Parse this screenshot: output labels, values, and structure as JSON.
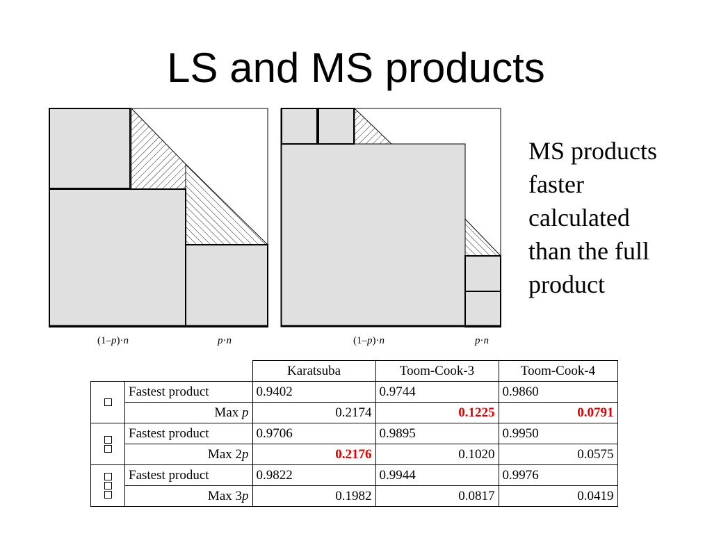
{
  "title": "LS and MS products",
  "side_text": [
    "MS products",
    "faster",
    "calculated",
    "than the full",
    "product"
  ],
  "diagram_labels": {
    "left_low_pre": "(1–",
    "left_low_var": "p",
    "left_low_post": ")·",
    "left_low_n": "n",
    "left_high_p": "p",
    "left_high_dot": "·",
    "left_high_n": "n",
    "right_low_pre": "(1–",
    "right_low_var": "p",
    "right_low_post": ")·",
    "right_low_n": "n",
    "right_high_p": "p",
    "right_high_dot": "·",
    "right_high_n": "n"
  },
  "table": {
    "headers": [
      "Karatsuba",
      "Toom-Cook-3",
      "Toom-Cook-4"
    ],
    "groups": [
      {
        "fastest_label": "Fastest product",
        "max_label_prefix": "Max ",
        "max_label_var": "p",
        "fastest": [
          "0.9402",
          "0.9744",
          "0.9860"
        ],
        "max": [
          "0.2174",
          "0.1225",
          "0.0791"
        ],
        "highlight": [
          false,
          true,
          true
        ]
      },
      {
        "fastest_label": "Fastest product",
        "max_label_prefix": "Max 2",
        "max_label_var": "p",
        "fastest": [
          "0.9706",
          "0.9895",
          "0.9950"
        ],
        "max": [
          "0.2176",
          "0.1020",
          "0.0575"
        ],
        "highlight": [
          true,
          false,
          false
        ]
      },
      {
        "fastest_label": "Fastest product",
        "max_label_prefix": "Max 3",
        "max_label_var": "p",
        "fastest": [
          "0.9822",
          "0.9944",
          "0.9976"
        ],
        "max": [
          "0.1982",
          "0.0817",
          "0.0419"
        ],
        "highlight": [
          false,
          false,
          false
        ]
      }
    ]
  },
  "colors": {
    "fill": "#e0e0e0",
    "highlight": "#e00000"
  }
}
